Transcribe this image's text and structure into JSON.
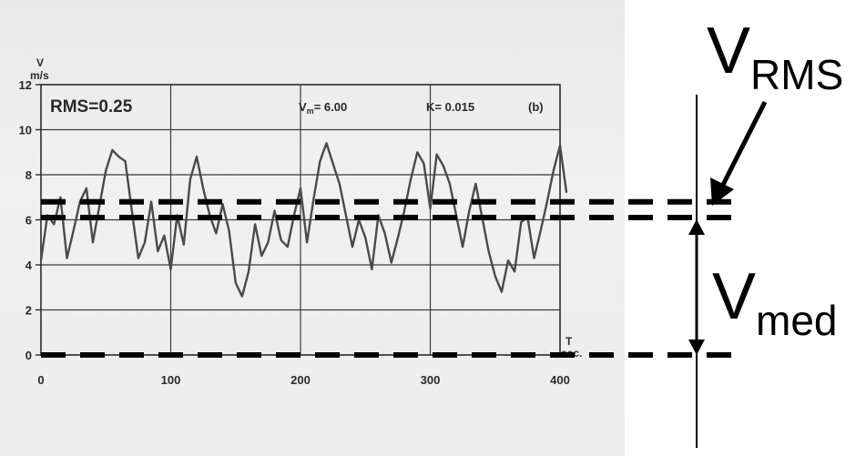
{
  "chart_data": {
    "type": "line",
    "ylabel": "V",
    "yunit": "m/s",
    "xlabel": "T",
    "xunit": "sec.",
    "xlim": [
      0,
      400
    ],
    "ylim": [
      0,
      12
    ],
    "xticks": [
      0,
      100,
      200,
      300,
      400
    ],
    "yticks": [
      0,
      2,
      4,
      6,
      8,
      10,
      12
    ],
    "grid": true,
    "annotations": {
      "rms": "RMS=0.25",
      "vm_label": "V",
      "vm_sub": "m",
      "vm_value": "= 6.00",
      "k": "K= 0.015",
      "panel": "(b)"
    },
    "reference_lines": [
      {
        "label": "V_RMS",
        "y": 6.8
      },
      {
        "label": "V_med",
        "y": 6.1
      },
      {
        "label": "zero",
        "y": 0
      }
    ],
    "series": [
      {
        "x": [
          0,
          5,
          10,
          15,
          20,
          25,
          30,
          35,
          40,
          45,
          50,
          55,
          60,
          65,
          70,
          75,
          80,
          85,
          90,
          95,
          100,
          105,
          110,
          115,
          120,
          125,
          130,
          135,
          140,
          145,
          150,
          155,
          160,
          165,
          170,
          175,
          180,
          185,
          190,
          195,
          200,
          205,
          210,
          215,
          220,
          225,
          230,
          235,
          240,
          245,
          250,
          255,
          260,
          265,
          270,
          275,
          280,
          285,
          290,
          295,
          300,
          305,
          310,
          315,
          320,
          325,
          330,
          335,
          340,
          345,
          350,
          355,
          360,
          365,
          370,
          375,
          380,
          385,
          390,
          395,
          400,
          405
        ],
        "y": [
          4.2,
          6.2,
          5.8,
          7.0,
          4.3,
          5.5,
          6.8,
          7.4,
          5.0,
          6.6,
          8.2,
          9.1,
          8.8,
          8.6,
          6.4,
          4.3,
          5.0,
          6.8,
          4.6,
          5.3,
          3.8,
          6.2,
          4.9,
          7.8,
          8.8,
          7.4,
          6.2,
          5.4,
          6.7,
          5.5,
          3.2,
          2.6,
          3.7,
          5.8,
          4.4,
          5.0,
          6.4,
          5.1,
          4.8,
          6.2,
          7.4,
          5.0,
          6.9,
          8.6,
          9.4,
          8.5,
          7.6,
          6.2,
          4.8,
          6.0,
          5.2,
          3.8,
          6.2,
          5.4,
          4.1,
          5.2,
          6.4,
          7.8,
          9.0,
          8.5,
          6.5,
          8.9,
          8.4,
          7.6,
          6.2,
          4.8,
          6.4,
          7.6,
          6.1,
          4.6,
          3.5,
          2.8,
          4.2,
          3.7,
          5.9,
          6.1,
          4.3,
          5.5,
          6.8,
          8.2,
          9.3,
          7.2
        ]
      }
    ]
  },
  "overlay": {
    "v_rms_main": "V",
    "v_rms_sub": "RMS",
    "v_med_main": "V",
    "v_med_sub": "med"
  }
}
